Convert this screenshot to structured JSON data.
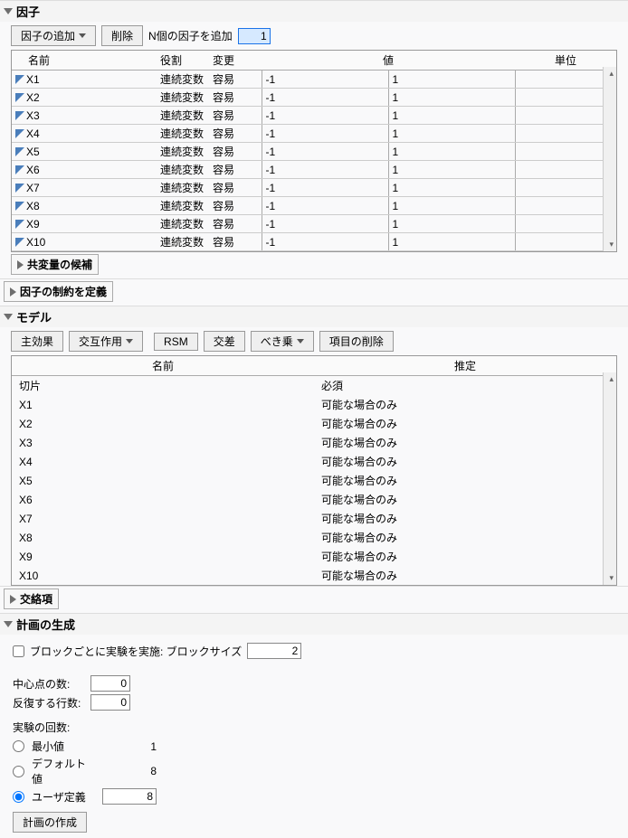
{
  "factors": {
    "title": "因子",
    "toolbar": {
      "add_label": "因子の追加",
      "delete_label": "削除",
      "n_add_label": "N個の因子を追加",
      "n_value": "1"
    },
    "columns": {
      "name": "名前",
      "role": "役割",
      "change": "変更",
      "value": "値",
      "unit": "単位"
    },
    "rows": [
      {
        "name": "X1",
        "role": "連続変数",
        "change": "容易",
        "v1": "-1",
        "v2": "1"
      },
      {
        "name": "X2",
        "role": "連続変数",
        "change": "容易",
        "v1": "-1",
        "v2": "1"
      },
      {
        "name": "X3",
        "role": "連続変数",
        "change": "容易",
        "v1": "-1",
        "v2": "1"
      },
      {
        "name": "X4",
        "role": "連続変数",
        "change": "容易",
        "v1": "-1",
        "v2": "1"
      },
      {
        "name": "X5",
        "role": "連続変数",
        "change": "容易",
        "v1": "-1",
        "v2": "1"
      },
      {
        "name": "X6",
        "role": "連続変数",
        "change": "容易",
        "v1": "-1",
        "v2": "1"
      },
      {
        "name": "X7",
        "role": "連続変数",
        "change": "容易",
        "v1": "-1",
        "v2": "1"
      },
      {
        "name": "X8",
        "role": "連続変数",
        "change": "容易",
        "v1": "-1",
        "v2": "1"
      },
      {
        "name": "X9",
        "role": "連続変数",
        "change": "容易",
        "v1": "-1",
        "v2": "1"
      },
      {
        "name": "X10",
        "role": "連続変数",
        "change": "容易",
        "v1": "-1",
        "v2": "1"
      }
    ],
    "covariates_title": "共変量の候補"
  },
  "constraints_title": "因子の制約を定義",
  "model": {
    "title": "モデル",
    "toolbar": {
      "main_effects": "主効果",
      "interactions": "交互作用",
      "rsm": "RSM",
      "cross": "交差",
      "power": "べき乗",
      "delete": "項目の削除"
    },
    "columns": {
      "name": "名前",
      "est": "推定"
    },
    "rows": [
      {
        "name": "切片",
        "est": "必須"
      },
      {
        "name": "X1",
        "est": "可能な場合のみ"
      },
      {
        "name": "X2",
        "est": "可能な場合のみ"
      },
      {
        "name": "X3",
        "est": "可能な場合のみ"
      },
      {
        "name": "X4",
        "est": "可能な場合のみ"
      },
      {
        "name": "X5",
        "est": "可能な場合のみ"
      },
      {
        "name": "X6",
        "est": "可能な場合のみ"
      },
      {
        "name": "X7",
        "est": "可能な場合のみ"
      },
      {
        "name": "X8",
        "est": "可能な場合のみ"
      },
      {
        "name": "X9",
        "est": "可能な場合のみ"
      },
      {
        "name": "X10",
        "est": "可能な場合のみ"
      }
    ]
  },
  "alias_title": "交絡項",
  "generate": {
    "title": "計画の生成",
    "block_label": "ブロックごとに実験を実施: ブロックサイズ",
    "block_value": "2",
    "center_label": "中心点の数:",
    "center_value": "0",
    "replicate_label": "反復する行数:",
    "replicate_value": "0",
    "runs_title": "実験の回数:",
    "min_label": "最小値",
    "min_val": "1",
    "default_label": "デフォルト値",
    "default_val": "8",
    "user_label": "ユーザ定義",
    "user_val": "8",
    "make_button": "計画の作成"
  }
}
